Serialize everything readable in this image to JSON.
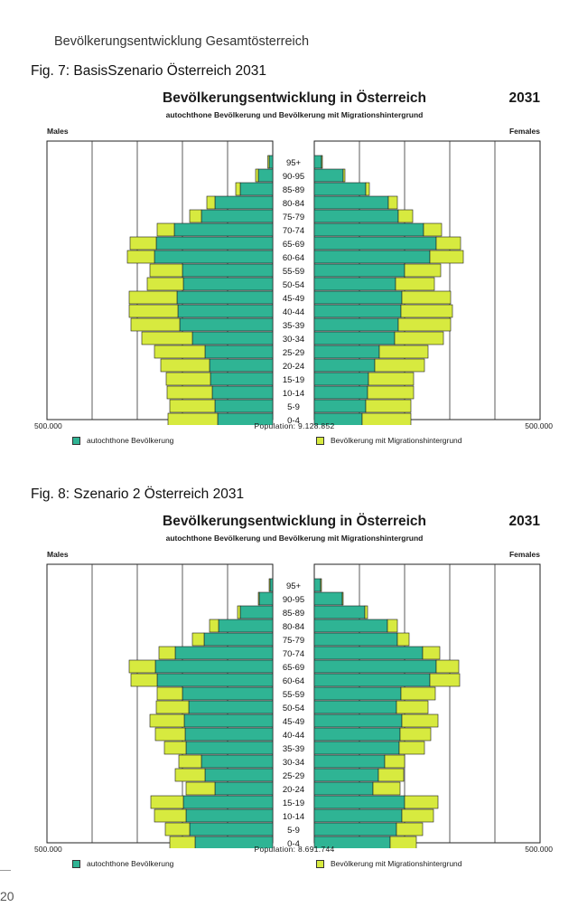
{
  "page": {
    "header": "Bevölkerungsentwicklung Gesamtösterreich",
    "page_number": "20"
  },
  "colors": {
    "auto": "#2fb494",
    "mig": "#d7ea3f"
  },
  "figures": [
    {
      "caption": "Fig.  7: BasisSzenario Österreich  2031",
      "title": "Bevölkerungsentwicklung in Österreich",
      "year": "2031",
      "subtitle": "autochthone Bevölkerung und Bevölkerung mit Migrationshintergrund",
      "males_label": "Males",
      "females_label": "Females",
      "axis_left": "500.000",
      "axis_right": "500.000",
      "population": "Population:  9.128.852",
      "legend_auto": "autochthone Bevölkerung",
      "legend_mig": "Bevölkerung mit Migrationshintergrund"
    },
    {
      "caption": "Fig.  8: Szenario 2 Österreich 2031",
      "title": "Bevölkerungsentwicklung in Österreich",
      "year": "2031",
      "subtitle": "autochthone Bevölkerung und Bevölkerung mit Migrationshintergrund",
      "males_label": "Males",
      "females_label": "Females",
      "axis_left": "500.000",
      "axis_right": "500.000",
      "population": "Population:  8.691.744",
      "legend_auto": "autochthone Bevölkerung",
      "legend_mig": "Bevölkerung mit Migrationshintergrund"
    }
  ],
  "chart_data": [
    {
      "type": "bar",
      "orientation": "population-pyramid",
      "title": "Bevölkerungsentwicklung in Österreich",
      "subtitle": "autochthone Bevölkerung und Bevölkerung mit Migrationshintergrund",
      "xlim": [
        0,
        500000
      ],
      "categories": [
        "0-4",
        "5-9",
        "10-14",
        "15-19",
        "20-24",
        "25-29",
        "30-34",
        "35-39",
        "40-44",
        "45-49",
        "50-54",
        "55-59",
        "60-64",
        "65-69",
        "70-74",
        "75-79",
        "80-84",
        "85-89",
        "90-95",
        "95+"
      ],
      "series": [
        {
          "name": "autochthone Bevölkerung",
          "side": "Males",
          "values": [
            122000,
            128000,
            134000,
            138000,
            140000,
            150000,
            178000,
            206000,
            210000,
            212000,
            198000,
            200000,
            262000,
            258000,
            218000,
            158000,
            128000,
            72000,
            32000,
            8000
          ]
        },
        {
          "name": "Bevölkerung mit Migrationshintergrund",
          "side": "Males",
          "values": [
            110000,
            100000,
            100000,
            98000,
            108000,
            112000,
            112000,
            108000,
            108000,
            106000,
            80000,
            72000,
            60000,
            58000,
            38000,
            26000,
            18000,
            10000,
            6000,
            3000
          ]
        },
        {
          "name": "autochthone Bevölkerung",
          "side": "Females",
          "values": [
            106000,
            114000,
            118000,
            120000,
            134000,
            144000,
            178000,
            186000,
            192000,
            194000,
            180000,
            200000,
            256000,
            270000,
            242000,
            186000,
            164000,
            114000,
            64000,
            16000
          ]
        },
        {
          "name": "Bevölkerung mit Migrationshintergrund",
          "side": "Females",
          "values": [
            108000,
            100000,
            102000,
            100000,
            110000,
            108000,
            108000,
            116000,
            114000,
            108000,
            86000,
            80000,
            74000,
            54000,
            40000,
            32000,
            20000,
            8000,
            4000,
            2000
          ]
        }
      ]
    },
    {
      "type": "bar",
      "orientation": "population-pyramid",
      "title": "Bevölkerungsentwicklung in Österreich",
      "subtitle": "autochthone Bevölkerung und Bevölkerung mit Migrationshintergrund",
      "xlim": [
        0,
        500000
      ],
      "categories": [
        "0-4",
        "5-9",
        "10-14",
        "15-19",
        "20-24",
        "25-29",
        "30-34",
        "35-39",
        "40-44",
        "45-49",
        "50-54",
        "55-59",
        "60-64",
        "65-69",
        "70-74",
        "75-79",
        "80-84",
        "85-89",
        "90-95",
        "95+"
      ],
      "series": [
        {
          "name": "autochthone Bevölkerung",
          "side": "Males",
          "values": [
            172000,
            184000,
            192000,
            198000,
            128000,
            150000,
            158000,
            192000,
            194000,
            196000,
            186000,
            200000,
            256000,
            260000,
            216000,
            152000,
            120000,
            72000,
            30000,
            6000
          ]
        },
        {
          "name": "Bevölkerung mit Migrationshintergrund",
          "side": "Males",
          "values": [
            56000,
            54000,
            70000,
            72000,
            64000,
            66000,
            50000,
            48000,
            66000,
            76000,
            72000,
            56000,
            58000,
            58000,
            36000,
            26000,
            20000,
            6000,
            2000,
            2000
          ]
        },
        {
          "name": "autochthone Bevölkerung",
          "side": "Females",
          "values": [
            168000,
            182000,
            194000,
            200000,
            130000,
            142000,
            156000,
            188000,
            190000,
            194000,
            182000,
            192000,
            256000,
            270000,
            240000,
            184000,
            162000,
            112000,
            62000,
            14000
          ]
        },
        {
          "name": "Bevölkerung mit Migrationshintergrund",
          "side": "Females",
          "values": [
            58000,
            58000,
            70000,
            74000,
            60000,
            56000,
            44000,
            56000,
            68000,
            80000,
            70000,
            76000,
            66000,
            50000,
            38000,
            26000,
            22000,
            6000,
            2000,
            2000
          ]
        }
      ]
    }
  ]
}
